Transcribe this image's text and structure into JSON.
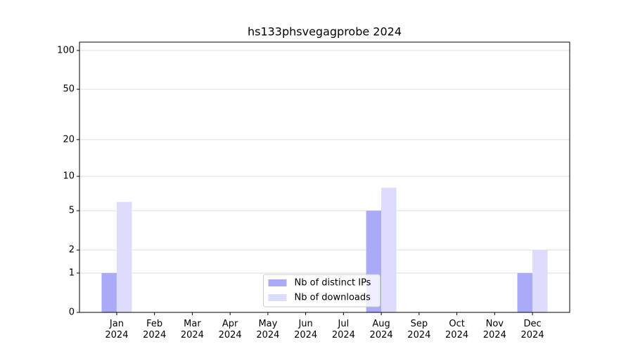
{
  "chart_data": {
    "type": "bar",
    "title": "hs133phsvegagprobe 2024",
    "categories": [
      "Jan 2024",
      "Feb 2024",
      "Mar 2024",
      "Apr 2024",
      "May 2024",
      "Jun 2024",
      "Jul 2024",
      "Aug 2024",
      "Sep 2024",
      "Oct 2024",
      "Nov 2024",
      "Dec 2024"
    ],
    "series": [
      {
        "name": "Nb of distinct IPs",
        "color": "#aaaaf8",
        "values": [
          1,
          0,
          0,
          0,
          0,
          0,
          0,
          5,
          0,
          0,
          0,
          1
        ]
      },
      {
        "name": "Nb of downloads",
        "color": "#dcdcfc",
        "values": [
          6,
          0,
          0,
          0,
          0,
          0,
          0,
          8,
          0,
          0,
          0,
          2
        ]
      }
    ],
    "yscale": "log1p",
    "ylim": [
      0,
      116
    ],
    "yticks": [
      0,
      1,
      2,
      5,
      10,
      20,
      50,
      100
    ],
    "grid": true,
    "legend": "lower center"
  }
}
